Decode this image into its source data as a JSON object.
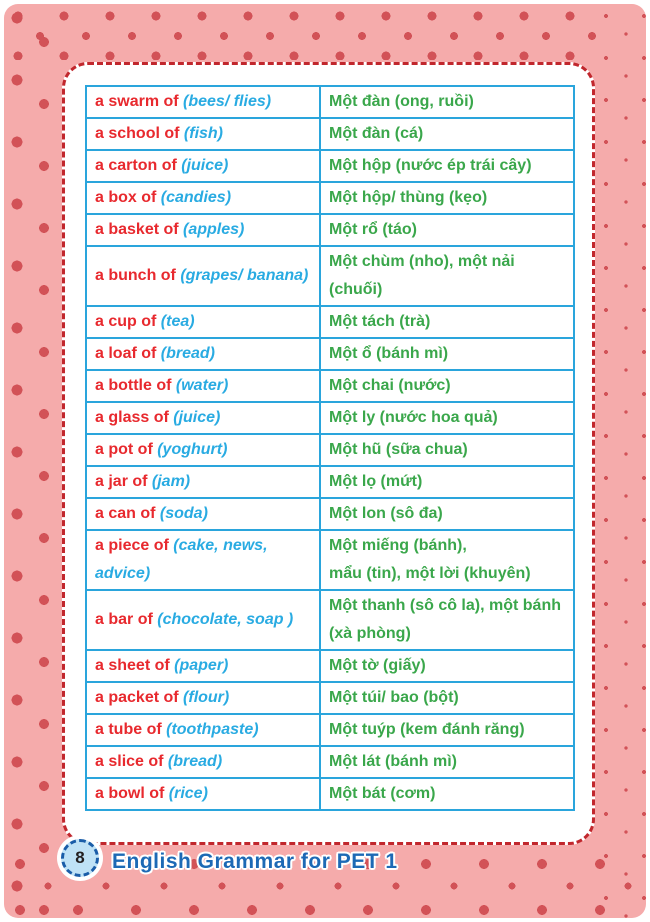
{
  "table": {
    "rows": [
      {
        "en": "a swarm of",
        "noun": "(bees/ flies)",
        "vi": [
          "Một đàn (ong, ruồi)"
        ]
      },
      {
        "en": "a school of",
        "noun": "(fish)",
        "vi": [
          "Một đàn (cá)"
        ]
      },
      {
        "en": "a carton of",
        "noun": "(juice)",
        "vi": [
          "Một hộp (nước ép trái cây)"
        ]
      },
      {
        "en": "a box of",
        "noun": "(candies)",
        "vi": [
          "Một hộp/ thùng (kẹo)"
        ]
      },
      {
        "en": "a basket of",
        "noun": "(apples)",
        "vi": [
          "Một rổ (táo)"
        ]
      },
      {
        "en": "a bunch of",
        "noun": "(grapes/ banana)",
        "vi": [
          "Một chùm (nho), một nải (chuối)"
        ]
      },
      {
        "en": "a cup of",
        "noun": "(tea)",
        "vi": [
          "Một tách (trà)"
        ]
      },
      {
        "en": "a loaf of",
        "noun": "(bread)",
        "vi": [
          "Một ổ (bánh mì)"
        ]
      },
      {
        "en": "a bottle of",
        "noun": "(water)",
        "vi": [
          "Một chai (nước)"
        ]
      },
      {
        "en": "a glass of",
        "noun": "(juice)",
        "vi": [
          "Một ly (nước hoa quả)"
        ]
      },
      {
        "en": "a pot of",
        "noun": "(yoghurt)",
        "vi": [
          "Một hũ (sữa chua)"
        ]
      },
      {
        "en": "a jar of",
        "noun": "(jam)",
        "vi": [
          "Một lọ (mứt)"
        ]
      },
      {
        "en": "a can of",
        "noun": "(soda)",
        "vi": [
          "Một lon (sô đa)"
        ]
      },
      {
        "en": "a piece of",
        "noun": "(cake, news, advice)",
        "vi": [
          "Một miếng (bánh),",
          "mẩu (tin), một lời (khuyên)"
        ]
      },
      {
        "en": "a bar of",
        "noun": "(chocolate, soap )",
        "vi": [
          "Một thanh (sô cô la), một bánh",
          "(xà phòng)"
        ]
      },
      {
        "en": "a sheet of",
        "noun": "(paper)",
        "vi": [
          "Một tờ (giấy)"
        ]
      },
      {
        "en": "a packet of",
        "noun": "(flour)",
        "vi": [
          "Một túi/ bao (bột)"
        ]
      },
      {
        "en": "a tube of",
        "noun": "(toothpaste)",
        "vi": [
          "Một tuýp (kem đánh răng)"
        ]
      },
      {
        "en": "a slice of",
        "noun": "(bread)",
        "vi": [
          "Một lát (bánh mì)"
        ]
      },
      {
        "en": "a bowl of",
        "noun": "(rice)",
        "vi": [
          "Một bát (cơm)"
        ]
      }
    ]
  },
  "footer": {
    "page_number": "8",
    "book_title": "English Grammar for PET 1"
  },
  "colors": {
    "page_pink": "#f5abab",
    "dot_red": "#d25257",
    "card_border_red": "#c1272d",
    "text_red": "#e8292e",
    "text_blue_italic": "#29abe2",
    "text_green": "#3aa74b",
    "table_border_blue": "#2aa5dc",
    "badge_fill": "#bfe2f6",
    "badge_border": "#1a5da8",
    "title_blue": "#1d69b5"
  }
}
